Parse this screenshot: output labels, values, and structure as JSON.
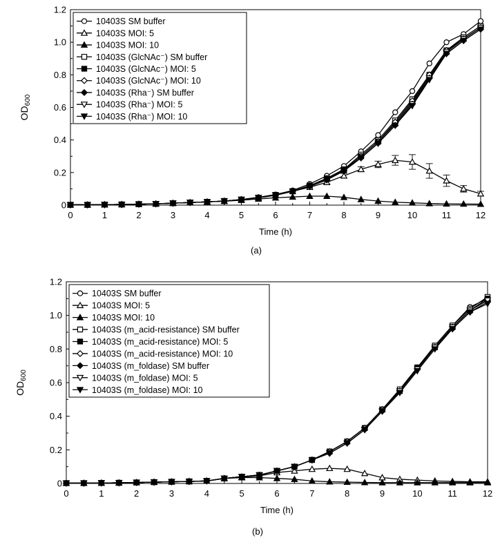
{
  "chart_data": [
    {
      "type": "line",
      "panel_label": "(a)",
      "xlabel": "Time (h)",
      "ylabel": "OD",
      "ylabel_sub": "600",
      "xlim": [
        0,
        12
      ],
      "ylim": [
        0,
        1.2
      ],
      "xticks": [
        "0",
        "1",
        "2",
        "3",
        "4",
        "5",
        "6",
        "7",
        "8",
        "9",
        "10",
        "11",
        "12"
      ],
      "yticks": [
        "0",
        "0.2",
        "0.4",
        "0.6",
        "0.8",
        "1.0",
        "1.2"
      ],
      "legend_position": "top-left",
      "grid": false,
      "x": [
        0,
        0.5,
        1,
        1.5,
        2,
        2.5,
        3,
        3.5,
        4,
        4.5,
        5,
        5.5,
        6,
        6.5,
        7,
        7.5,
        8,
        8.5,
        9,
        9.5,
        10,
        10.5,
        11,
        11.5,
        12
      ],
      "series": [
        {
          "name": "10403S SM buffer",
          "marker": "circle-open",
          "values": [
            0.002,
            0.002,
            0.003,
            0.004,
            0.006,
            0.008,
            0.012,
            0.016,
            0.02,
            0.025,
            0.035,
            0.048,
            0.065,
            0.09,
            0.13,
            0.18,
            0.24,
            0.33,
            0.43,
            0.57,
            0.7,
            0.87,
            1.0,
            1.05,
            1.13
          ]
        },
        {
          "name": "10403S MOI: 5",
          "marker": "triangle-open",
          "values": [
            0.002,
            0.002,
            0.003,
            0.004,
            0.006,
            0.008,
            0.012,
            0.016,
            0.02,
            0.025,
            0.033,
            0.045,
            0.06,
            0.085,
            0.11,
            0.14,
            0.18,
            0.22,
            0.25,
            0.275,
            0.265,
            0.21,
            0.15,
            0.1,
            0.07
          ],
          "error": [
            0,
            0,
            0,
            0,
            0,
            0,
            0,
            0,
            0,
            0,
            0,
            0,
            0,
            0,
            0,
            0.01,
            0.015,
            0.015,
            0.02,
            0.03,
            0.045,
            0.045,
            0.035,
            0.02,
            0.015
          ]
        },
        {
          "name": "10403S MOI: 10",
          "marker": "triangle-filled",
          "values": [
            0.002,
            0.002,
            0.003,
            0.004,
            0.006,
            0.008,
            0.012,
            0.016,
            0.02,
            0.024,
            0.03,
            0.038,
            0.045,
            0.05,
            0.055,
            0.055,
            0.048,
            0.035,
            0.025,
            0.018,
            0.014,
            0.01,
            0.008,
            0.007,
            0.006
          ]
        },
        {
          "name": "10403S (GlcNAc⁻) SM buffer",
          "marker": "square-open",
          "values": [
            0.002,
            0.002,
            0.003,
            0.004,
            0.006,
            0.008,
            0.012,
            0.016,
            0.02,
            0.025,
            0.034,
            0.046,
            0.062,
            0.085,
            0.12,
            0.165,
            0.22,
            0.31,
            0.4,
            0.52,
            0.65,
            0.8,
            0.95,
            1.03,
            1.1
          ]
        },
        {
          "name": "10403S (GlcNAc⁻) MOI: 5",
          "marker": "square-filled",
          "values": [
            0.002,
            0.002,
            0.003,
            0.004,
            0.006,
            0.008,
            0.012,
            0.016,
            0.02,
            0.025,
            0.034,
            0.046,
            0.062,
            0.085,
            0.12,
            0.16,
            0.215,
            0.3,
            0.39,
            0.5,
            0.63,
            0.79,
            0.94,
            1.02,
            1.09
          ]
        },
        {
          "name": "10403S (GlcNAc⁻) MOI: 10",
          "marker": "diamond-open",
          "values": [
            0.002,
            0.002,
            0.003,
            0.004,
            0.006,
            0.008,
            0.012,
            0.016,
            0.02,
            0.025,
            0.034,
            0.046,
            0.062,
            0.085,
            0.12,
            0.16,
            0.215,
            0.3,
            0.39,
            0.51,
            0.64,
            0.8,
            0.95,
            1.02,
            1.09
          ]
        },
        {
          "name": "10403S (Rha⁻) SM buffer",
          "marker": "diamond-filled",
          "values": [
            0.002,
            0.002,
            0.003,
            0.004,
            0.006,
            0.008,
            0.012,
            0.016,
            0.02,
            0.025,
            0.034,
            0.046,
            0.062,
            0.085,
            0.115,
            0.155,
            0.21,
            0.29,
            0.38,
            0.49,
            0.62,
            0.78,
            0.93,
            1.01,
            1.08
          ]
        },
        {
          "name": "10403S (Rha⁻) MOI: 5",
          "marker": "triangle-down-open",
          "values": [
            0.002,
            0.002,
            0.003,
            0.004,
            0.006,
            0.008,
            0.012,
            0.016,
            0.02,
            0.025,
            0.034,
            0.046,
            0.062,
            0.085,
            0.115,
            0.155,
            0.21,
            0.29,
            0.38,
            0.49,
            0.62,
            0.78,
            0.94,
            1.02,
            1.09
          ]
        },
        {
          "name": "10403S (Rha⁻) MOI: 10",
          "marker": "triangle-down-filled",
          "values": [
            0.002,
            0.002,
            0.003,
            0.004,
            0.006,
            0.008,
            0.012,
            0.016,
            0.02,
            0.025,
            0.034,
            0.046,
            0.062,
            0.085,
            0.115,
            0.155,
            0.21,
            0.29,
            0.38,
            0.49,
            0.61,
            0.77,
            0.93,
            1.01,
            1.08
          ]
        }
      ]
    },
    {
      "type": "line",
      "panel_label": "(b)",
      "xlabel": "Time (h)",
      "ylabel": "OD",
      "ylabel_sub": "600",
      "xlim": [
        0,
        12
      ],
      "ylim": [
        0,
        1.2
      ],
      "xticks": [
        "0",
        "1",
        "2",
        "3",
        "4",
        "5",
        "6",
        "7",
        "8",
        "9",
        "10",
        "11",
        "12"
      ],
      "yticks": [
        "0",
        "0.2",
        "0.4",
        "0.6",
        "0.8",
        "1.0",
        "1.2"
      ],
      "legend_position": "top-left",
      "grid": false,
      "x": [
        0,
        0.5,
        1,
        1.5,
        2,
        2.5,
        3,
        3.5,
        4,
        4.5,
        5,
        5.5,
        6,
        6.5,
        7,
        7.5,
        8,
        8.5,
        9,
        9.5,
        10,
        10.5,
        11,
        11.5,
        12
      ],
      "series": [
        {
          "name": "10403S SM buffer",
          "marker": "circle-open",
          "values": [
            0.002,
            0.002,
            0.003,
            0.004,
            0.006,
            0.008,
            0.01,
            0.012,
            0.015,
            0.03,
            0.04,
            0.05,
            0.075,
            0.1,
            0.14,
            0.19,
            0.25,
            0.33,
            0.44,
            0.56,
            0.69,
            0.82,
            0.94,
            1.05,
            1.1
          ]
        },
        {
          "name": "10403S MOI: 5",
          "marker": "triangle-open",
          "values": [
            0.002,
            0.002,
            0.003,
            0.004,
            0.006,
            0.008,
            0.01,
            0.012,
            0.015,
            0.03,
            0.038,
            0.045,
            0.065,
            0.075,
            0.085,
            0.09,
            0.085,
            0.06,
            0.035,
            0.025,
            0.02,
            0.015,
            0.012,
            0.01,
            0.01
          ]
        },
        {
          "name": "10403S MOI: 10",
          "marker": "triangle-filled",
          "values": [
            0.002,
            0.002,
            0.003,
            0.004,
            0.006,
            0.008,
            0.01,
            0.012,
            0.015,
            0.03,
            0.035,
            0.035,
            0.03,
            0.025,
            0.015,
            0.01,
            0.008,
            0.006,
            0.005,
            0.005,
            0.005,
            0.005,
            0.005,
            0.005,
            0.005
          ]
        },
        {
          "name": "10403S (m_acid-resistance) SM buffer",
          "marker": "square-open",
          "values": [
            0.002,
            0.002,
            0.003,
            0.004,
            0.006,
            0.008,
            0.01,
            0.012,
            0.015,
            0.03,
            0.04,
            0.05,
            0.075,
            0.1,
            0.14,
            0.19,
            0.25,
            0.33,
            0.44,
            0.56,
            0.69,
            0.82,
            0.94,
            1.04,
            1.11
          ]
        },
        {
          "name": "10403S (m_acid-resistance) MOI: 5",
          "marker": "square-filled",
          "values": [
            0.002,
            0.002,
            0.003,
            0.004,
            0.006,
            0.008,
            0.01,
            0.012,
            0.015,
            0.03,
            0.04,
            0.05,
            0.075,
            0.1,
            0.14,
            0.19,
            0.25,
            0.33,
            0.44,
            0.55,
            0.69,
            0.81,
            0.93,
            1.03,
            1.1
          ]
        },
        {
          "name": "10403S (m_acid-resistance) MOI: 10",
          "marker": "diamond-open",
          "values": [
            0.002,
            0.002,
            0.003,
            0.004,
            0.006,
            0.008,
            0.01,
            0.012,
            0.015,
            0.03,
            0.04,
            0.05,
            0.075,
            0.1,
            0.14,
            0.19,
            0.25,
            0.33,
            0.44,
            0.55,
            0.68,
            0.81,
            0.93,
            1.03,
            1.09
          ]
        },
        {
          "name": "10403S (m_foldase) SM buffer",
          "marker": "diamond-filled",
          "values": [
            0.002,
            0.002,
            0.003,
            0.004,
            0.006,
            0.008,
            0.01,
            0.012,
            0.015,
            0.03,
            0.04,
            0.05,
            0.075,
            0.1,
            0.14,
            0.18,
            0.24,
            0.32,
            0.43,
            0.55,
            0.68,
            0.81,
            0.92,
            1.02,
            1.08
          ]
        },
        {
          "name": "10403S (m_foldase) MOI: 5",
          "marker": "triangle-down-open",
          "values": [
            0.002,
            0.002,
            0.003,
            0.004,
            0.006,
            0.008,
            0.01,
            0.012,
            0.015,
            0.03,
            0.04,
            0.05,
            0.075,
            0.1,
            0.14,
            0.18,
            0.24,
            0.32,
            0.43,
            0.55,
            0.68,
            0.81,
            0.93,
            1.03,
            1.09
          ]
        },
        {
          "name": "10403S (m_foldase) MOI: 10",
          "marker": "triangle-down-filled",
          "values": [
            0.002,
            0.002,
            0.003,
            0.004,
            0.006,
            0.008,
            0.01,
            0.012,
            0.015,
            0.03,
            0.04,
            0.05,
            0.075,
            0.1,
            0.14,
            0.18,
            0.24,
            0.32,
            0.43,
            0.54,
            0.67,
            0.8,
            0.92,
            1.02,
            1.07
          ]
        }
      ]
    }
  ]
}
